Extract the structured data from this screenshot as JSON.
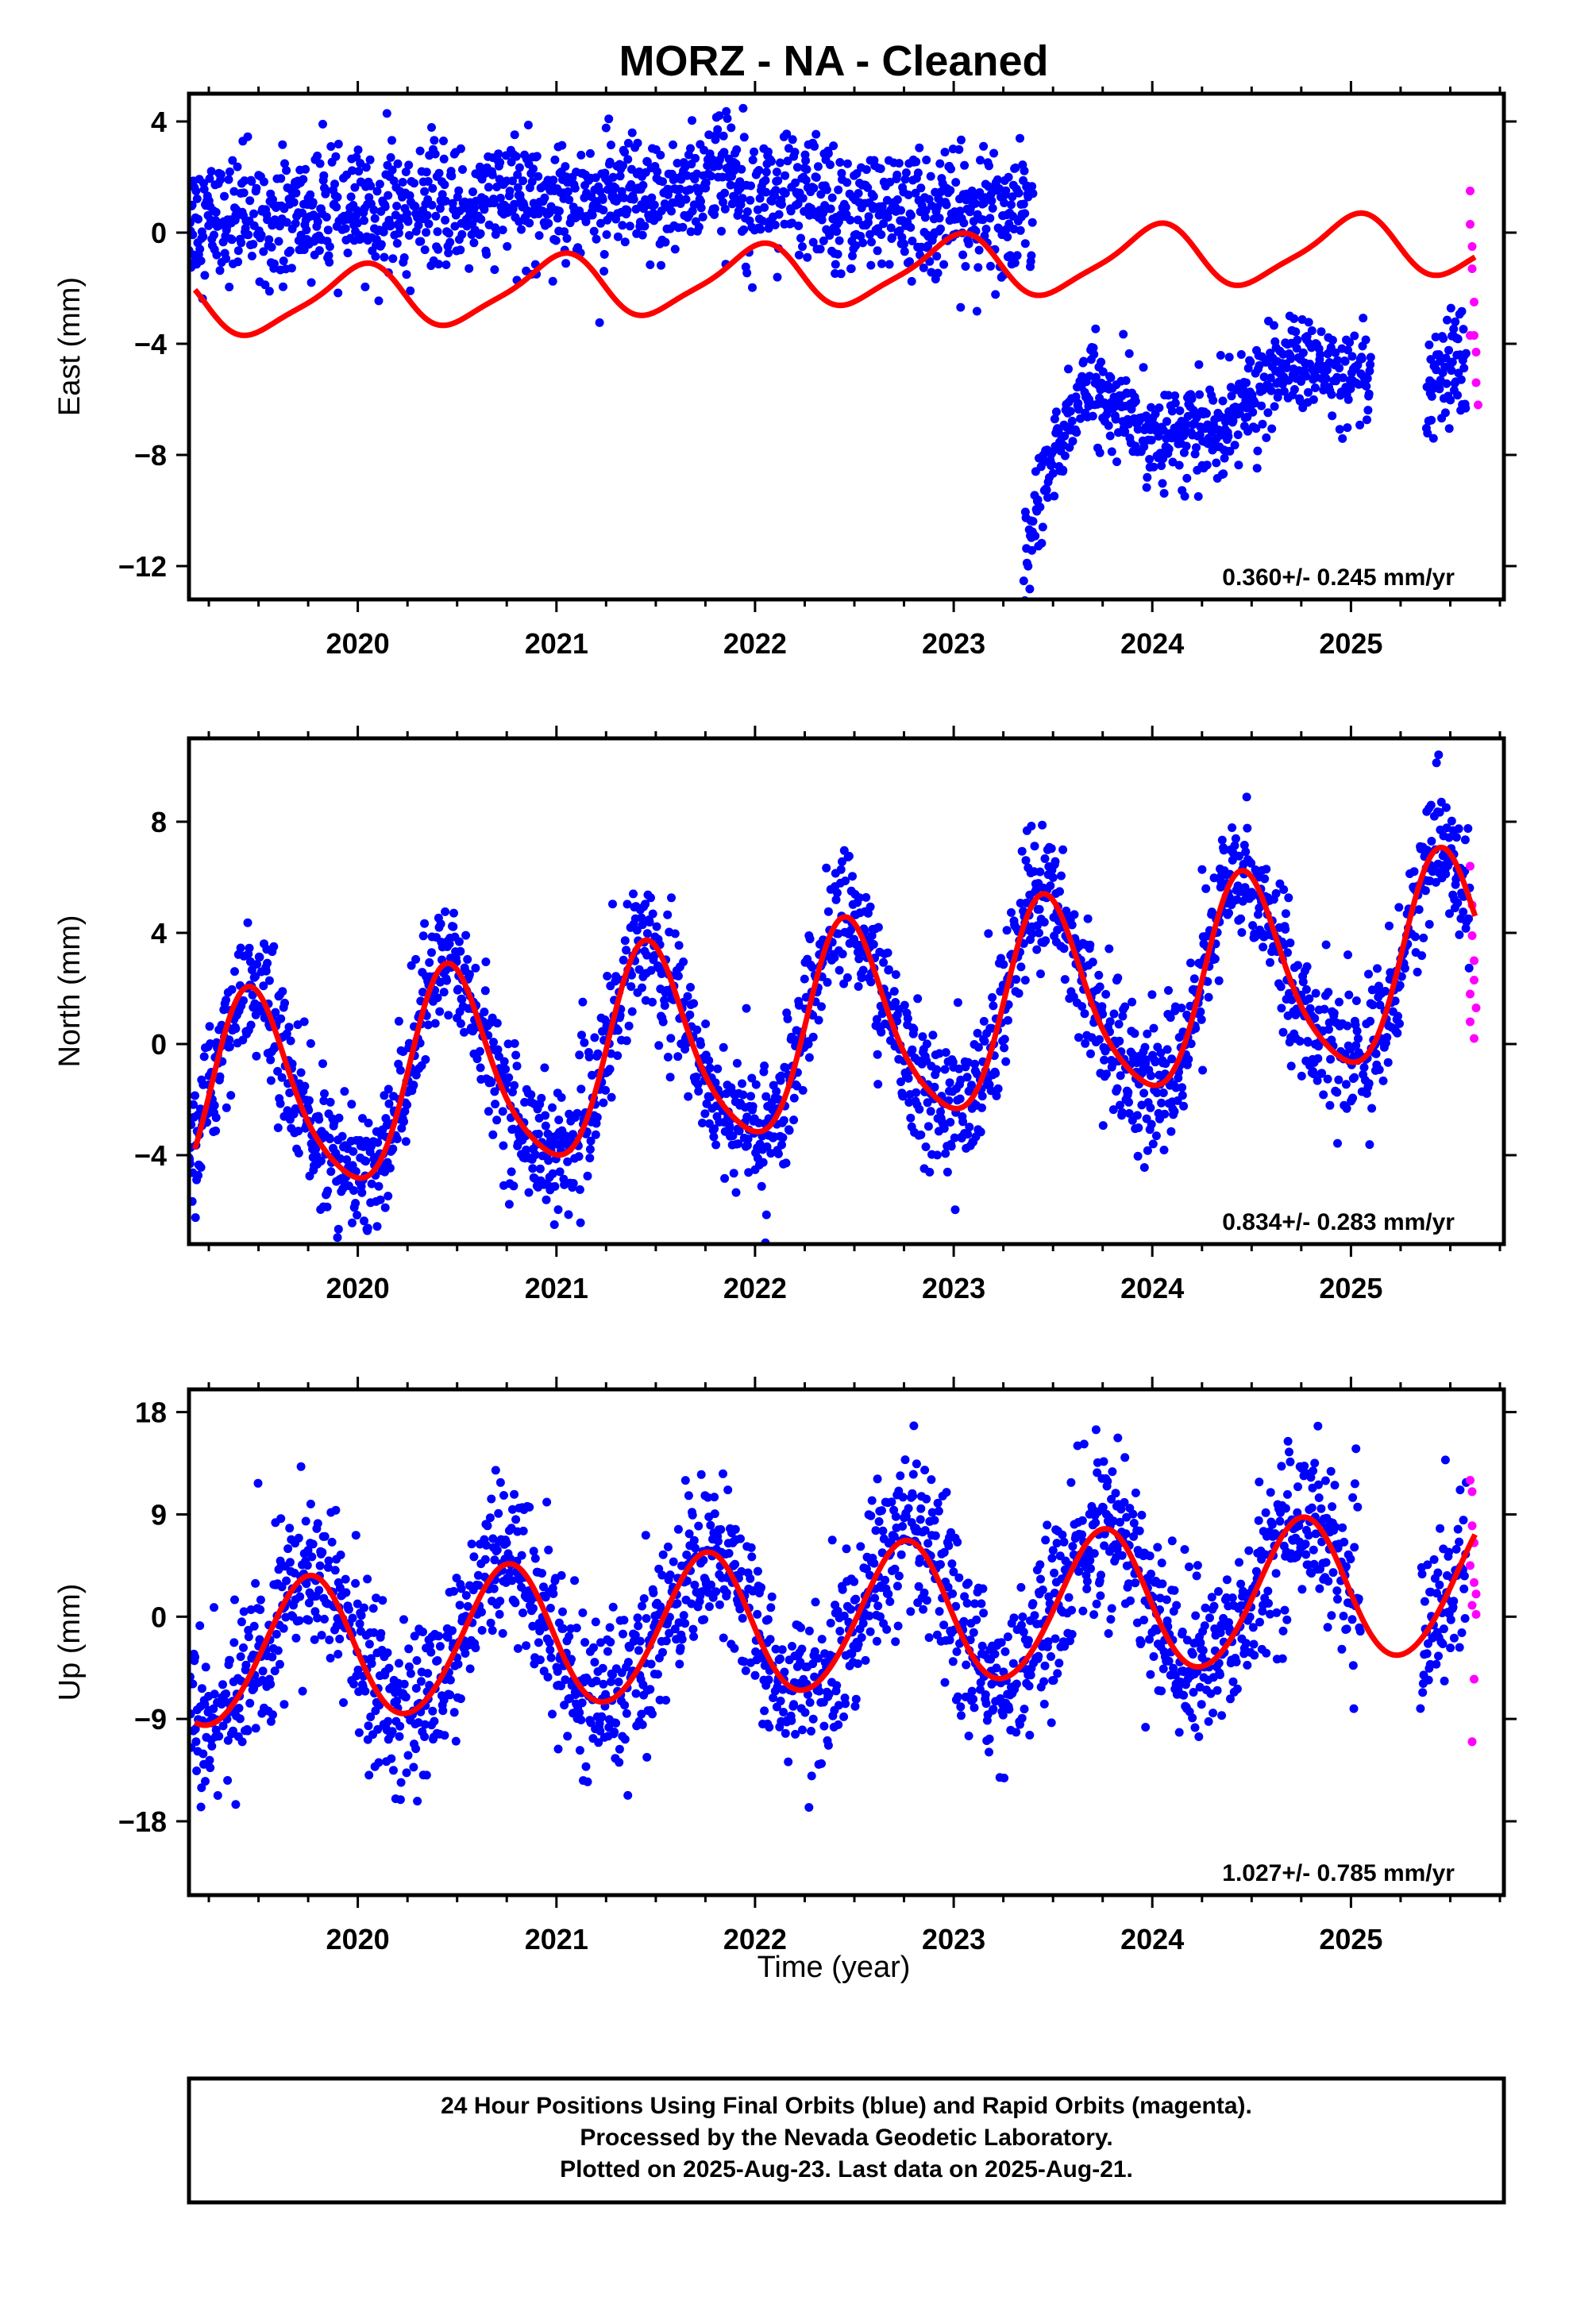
{
  "figure": {
    "title": "MORZ  - NA - Cleaned",
    "xlabel": "Time (year)",
    "footer": [
      "24 Hour Positions Using Final Orbits (blue) and Rapid Orbits (magenta).",
      "Processed by the Nevada Geodetic Laboratory.",
      "Plotted on 2025-Aug-23. Last data on 2025-Aug-21."
    ],
    "colors": {
      "final": "#0000ff",
      "rapid": "#ff00ff",
      "model": "#ff0000",
      "frame": "#000000"
    }
  },
  "chart_data": [
    {
      "type": "scatter",
      "name": "east",
      "ylabel": "East (mm)",
      "xlim": [
        2019.15,
        2025.77
      ],
      "ylim": [
        -13.2,
        5.0
      ],
      "yticks": [
        4,
        0,
        -4,
        -8,
        -12
      ],
      "xticks": [
        2020,
        2021,
        2022,
        2023,
        2024,
        2025
      ],
      "rate_label": "0.360+/- 0.245 mm/yr",
      "model": {
        "offset": -1.5,
        "rate": 0.36,
        "ref_year": 2022.4,
        "annual": {
          "amp": 1.1,
          "phase_year": 2022.0
        },
        "semiannual": {
          "amp": 0.25,
          "phase_year": 2022.1
        }
      },
      "final_orbit_series": [
        {
          "x_range": [
            2019.15,
            2023.4
          ],
          "trend": [
            [
              2019.15,
              0.5
            ],
            [
              2019.8,
              0.6
            ],
            [
              2020.5,
              0.9
            ],
            [
              2021.0,
              1.4
            ],
            [
              2021.5,
              0.9
            ],
            [
              2021.8,
              2.2
            ],
            [
              2022.2,
              1.2
            ],
            [
              2022.6,
              0.8
            ],
            [
              2023.0,
              0.6
            ],
            [
              2023.4,
              0.7
            ]
          ],
          "scatter": 1.1
        },
        {
          "x_range": [
            2023.35,
            2023.55
          ],
          "trend": [
            [
              2023.35,
              -12.0
            ],
            [
              2023.45,
              -9.0
            ],
            [
              2023.55,
              -7.5
            ]
          ],
          "scatter": 0.9
        },
        {
          "x_range": [
            2023.55,
            2025.1
          ],
          "trend": [
            [
              2023.55,
              -7.5
            ],
            [
              2023.65,
              -5.5
            ],
            [
              2023.8,
              -6.2
            ],
            [
              2024.0,
              -7.3
            ],
            [
              2024.3,
              -7.2
            ],
            [
              2024.5,
              -6.0
            ],
            [
              2024.7,
              -4.6
            ],
            [
              2025.1,
              -5.6
            ]
          ],
          "scatter": 0.85
        },
        {
          "x_range": [
            2025.38,
            2025.58
          ],
          "trend": [
            [
              2025.38,
              -6.0
            ],
            [
              2025.58,
              -4.5
            ]
          ],
          "scatter": 0.9
        }
      ],
      "rapid_orbit_points": [
        [
          2025.6,
          1.5
        ],
        [
          2025.6,
          0.3
        ],
        [
          2025.61,
          -0.5
        ],
        [
          2025.61,
          -1.3
        ],
        [
          2025.62,
          -2.5
        ],
        [
          2025.62,
          -3.7
        ],
        [
          2025.63,
          -4.3
        ],
        [
          2025.63,
          -5.4
        ],
        [
          2025.64,
          -6.2
        ],
        [
          2025.6,
          -3.7
        ]
      ]
    },
    {
      "type": "scatter",
      "name": "north",
      "ylabel": "North (mm)",
      "xlim": [
        2019.15,
        2025.77
      ],
      "ylim": [
        -7.2,
        11.0
      ],
      "yticks": [
        8,
        4,
        0,
        -4
      ],
      "xticks": [
        2020,
        2021,
        2022,
        2023,
        2024,
        2025
      ],
      "rate_label": "0.834+/- 0.283 mm/yr",
      "model": {
        "offset": 0.4,
        "rate": 0.834,
        "ref_year": 2022.4,
        "annual": {
          "amp": 3.6,
          "phase_year": 2022.47
        },
        "semiannual": {
          "amp": 0.6,
          "phase_year": 2022.42
        }
      },
      "final_orbit_series": [
        {
          "x_range": [
            2019.15,
            2025.6
          ],
          "follow_model": true,
          "scatter": 1.2
        }
      ],
      "rapid_orbit_points": [
        [
          2025.6,
          6.4
        ],
        [
          2025.61,
          5.0
        ],
        [
          2025.61,
          3.9
        ],
        [
          2025.62,
          3.0
        ],
        [
          2025.62,
          2.3
        ],
        [
          2025.6,
          1.8
        ],
        [
          2025.63,
          1.3
        ],
        [
          2025.6,
          0.8
        ],
        [
          2025.62,
          0.2
        ]
      ]
    },
    {
      "type": "scatter",
      "name": "up",
      "ylabel": "Up (mm)",
      "xlim": [
        2019.15,
        2025.77
      ],
      "ylim": [
        -24.5,
        20.0
      ],
      "yticks": [
        18,
        9,
        0,
        -9,
        -18
      ],
      "xticks": [
        2020,
        2021,
        2022,
        2023,
        2024,
        2025
      ],
      "rate_label": "1.027+/- 0.785 mm/yr",
      "model": {
        "offset": -0.3,
        "rate": 1.027,
        "ref_year": 2022.4,
        "annual": {
          "amp": 6.3,
          "phase_year": 2021.75
        },
        "semiannual": {
          "amp": 0.4,
          "phase_year": 2021.8
        }
      },
      "final_orbit_series": [
        {
          "x_range": [
            2019.15,
            2025.05
          ],
          "follow_model": true,
          "scatter": 3.6
        },
        {
          "x_range": [
            2025.35,
            2025.58
          ],
          "follow_model": true,
          "scatter": 3.4
        }
      ],
      "rapid_orbit_points": [
        [
          2025.6,
          12.0
        ],
        [
          2025.61,
          11.0
        ],
        [
          2025.61,
          8.0
        ],
        [
          2025.62,
          6.5
        ],
        [
          2025.6,
          4.5
        ],
        [
          2025.62,
          3.0
        ],
        [
          2025.63,
          2.0
        ],
        [
          2025.61,
          1.0
        ],
        [
          2025.63,
          0.2
        ],
        [
          2025.62,
          -5.5
        ],
        [
          2025.61,
          -11.0
        ]
      ]
    }
  ]
}
